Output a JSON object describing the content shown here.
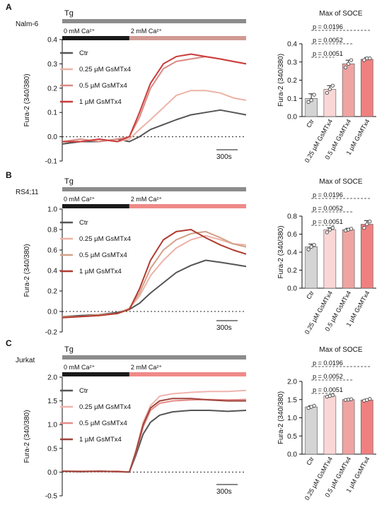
{
  "chart_data": [
    {
      "panel": "A",
      "cell_line": "Nalm-6",
      "type": "line",
      "treatment_label": "Tg",
      "phase1_label": "0 mM Ca²⁺",
      "phase2_label": "2 mM Ca²⁺",
      "ylabel": "Fura-2 (340/380)",
      "ylim": [
        -0.1,
        0.4
      ],
      "yticks": [
        "-0.1",
        "0.0",
        "0.1",
        "0.2",
        "0.3",
        "0.4"
      ],
      "scalebar_label": "300s",
      "t_switch": 0.365,
      "series": [
        {
          "name": "Ctr",
          "color": "#555555",
          "x": [
            0,
            0.1,
            0.2,
            0.3,
            0.365,
            0.42,
            0.48,
            0.55,
            0.62,
            0.7,
            0.78,
            0.86,
            0.93,
            1
          ],
          "values": [
            -0.03,
            -0.02,
            -0.02,
            -0.01,
            -0.02,
            0.0,
            0.03,
            0.05,
            0.07,
            0.09,
            0.1,
            0.11,
            0.1,
            0.09
          ]
        },
        {
          "name": "0.25 µM GsMTx4",
          "color": "#edb2a6",
          "x": [
            0,
            0.1,
            0.2,
            0.3,
            0.365,
            0.42,
            0.48,
            0.55,
            0.62,
            0.7,
            0.78,
            0.86,
            0.93,
            1
          ],
          "values": [
            -0.02,
            -0.02,
            -0.01,
            -0.02,
            -0.01,
            0.03,
            0.07,
            0.12,
            0.17,
            0.19,
            0.19,
            0.18,
            0.16,
            0.15
          ]
        },
        {
          "name": "0.5 µM GsMTx4",
          "color": "#d98a82",
          "x": [
            0,
            0.1,
            0.2,
            0.3,
            0.365,
            0.42,
            0.48,
            0.55,
            0.62,
            0.7,
            0.78,
            0.86,
            0.93,
            1
          ],
          "values": [
            -0.02,
            -0.01,
            -0.02,
            -0.01,
            0.0,
            0.08,
            0.2,
            0.28,
            0.31,
            0.32,
            0.33,
            0.32,
            0.31,
            0.3
          ]
        },
        {
          "name": "1 µM GsMTx4",
          "color": "#cc3b3b",
          "x": [
            0,
            0.1,
            0.2,
            0.3,
            0.365,
            0.42,
            0.48,
            0.55,
            0.62,
            0.7,
            0.78,
            0.86,
            0.93,
            1
          ],
          "values": [
            -0.02,
            -0.02,
            -0.01,
            -0.02,
            0.0,
            0.1,
            0.22,
            0.3,
            0.33,
            0.34,
            0.33,
            0.32,
            0.31,
            0.3
          ]
        }
      ],
      "bar": {
        "title": "Max of SOCE",
        "ylabel": "Fura-2 (340/380)",
        "ylim": [
          0,
          0.4
        ],
        "yticks": [
          "0.0",
          "0.1",
          "0.2",
          "0.3",
          "0.4"
        ],
        "categories": [
          "Ctr",
          "0.25 µM GsMTx4",
          "0.5 µM GsMTx4",
          "1 µM GsMTx4"
        ],
        "values": [
          0.1,
          0.15,
          0.29,
          0.315
        ],
        "errors": [
          0.025,
          0.02,
          0.02,
          0.01
        ],
        "points": [
          [
            0.08,
            0.09,
            0.12
          ],
          [
            0.13,
            0.15,
            0.17
          ],
          [
            0.27,
            0.29,
            0.31
          ],
          [
            0.31,
            0.32,
            0.32
          ]
        ],
        "colors": [
          "#d4d4d4",
          "#f9d7d6",
          "#f0a4a2",
          "#f08080"
        ],
        "pvalues": [
          "p = 0.0196",
          "p = 0.0052",
          "p = 0.0051"
        ]
      }
    },
    {
      "panel": "B",
      "cell_line": "RS4;11",
      "type": "line",
      "treatment_label": "Tg",
      "phase1_label": "0 mM Ca²⁺",
      "phase2_label": "2 mM Ca²⁺",
      "ylabel": "Fura-2 (340/380)",
      "ylim": [
        -0.2,
        1.0
      ],
      "yticks": [
        "-0.2",
        "0.0",
        "0.2",
        "0.4",
        "0.6",
        "0.8",
        "1.0"
      ],
      "scalebar_label": "300s",
      "t_switch": 0.365,
      "series": [
        {
          "name": "Ctr",
          "color": "#555555",
          "x": [
            0,
            0.1,
            0.2,
            0.3,
            0.365,
            0.42,
            0.48,
            0.55,
            0.62,
            0.7,
            0.78,
            0.86,
            0.93,
            1
          ],
          "values": [
            -0.05,
            -0.04,
            -0.03,
            -0.01,
            0.02,
            0.08,
            0.18,
            0.28,
            0.38,
            0.45,
            0.5,
            0.48,
            0.46,
            0.44
          ]
        },
        {
          "name": "0.25 µM GsMTx4",
          "color": "#edb2a6",
          "x": [
            0,
            0.1,
            0.2,
            0.3,
            0.365,
            0.42,
            0.48,
            0.55,
            0.62,
            0.7,
            0.78,
            0.86,
            0.93,
            1
          ],
          "values": [
            -0.06,
            -0.05,
            -0.04,
            -0.02,
            0.03,
            0.15,
            0.35,
            0.5,
            0.62,
            0.7,
            0.74,
            0.7,
            0.66,
            0.65
          ]
        },
        {
          "name": "0.5 µM GsMTx4",
          "color": "#d2a088",
          "x": [
            0,
            0.1,
            0.2,
            0.3,
            0.365,
            0.42,
            0.48,
            0.55,
            0.62,
            0.7,
            0.78,
            0.86,
            0.93,
            1
          ],
          "values": [
            -0.05,
            -0.05,
            -0.03,
            -0.02,
            0.03,
            0.18,
            0.42,
            0.6,
            0.7,
            0.76,
            0.78,
            0.72,
            0.66,
            0.63
          ]
        },
        {
          "name": "1 µM GsMTx4",
          "color": "#b03a2e",
          "x": [
            0,
            0.1,
            0.2,
            0.3,
            0.365,
            0.42,
            0.48,
            0.55,
            0.62,
            0.7,
            0.78,
            0.86,
            0.93,
            1
          ],
          "values": [
            -0.06,
            -0.05,
            -0.04,
            -0.02,
            0.02,
            0.22,
            0.5,
            0.7,
            0.78,
            0.8,
            0.72,
            0.65,
            0.6,
            0.56
          ]
        }
      ],
      "bar": {
        "title": "Max of SOCE",
        "ylabel": "Fura-2 (340/380)",
        "ylim": [
          0,
          0.8
        ],
        "yticks": [
          "0.0",
          "0.2",
          "0.4",
          "0.6",
          "0.8"
        ],
        "categories": [
          "Ctr",
          "0.25 µM GsMTx4",
          "0.5 µM GsMTx4",
          "1 µM GsMTx4"
        ],
        "values": [
          0.46,
          0.65,
          0.65,
          0.71
        ],
        "errors": [
          0.03,
          0.02,
          0.015,
          0.04
        ],
        "points": [
          [
            0.43,
            0.46,
            0.48
          ],
          [
            0.62,
            0.65,
            0.67
          ],
          [
            0.64,
            0.65,
            0.66
          ],
          [
            0.67,
            0.71,
            0.74
          ]
        ],
        "colors": [
          "#d4d4d4",
          "#f9d7d6",
          "#f0a4a2",
          "#f08080"
        ],
        "pvalues": [
          "p = 0.0196",
          "p = 0.0052",
          "p = 0.0051"
        ]
      }
    },
    {
      "panel": "C",
      "cell_line": "Jurkat",
      "type": "line",
      "treatment_label": "Tg",
      "phase1_label": "0 mM Ca²⁺",
      "phase2_label": "2 mM Ca²⁺",
      "ylabel": "Fura-2 (340/380)",
      "ylim": [
        -0.5,
        2.0
      ],
      "yticks": [
        "-0.5",
        "0.0",
        "0.5",
        "1.0",
        "1.5",
        "2.0"
      ],
      "scalebar_label": "300s",
      "t_switch": 0.365,
      "series": [
        {
          "name": "Ctr",
          "color": "#555555",
          "x": [
            0,
            0.1,
            0.2,
            0.3,
            0.365,
            0.4,
            0.44,
            0.48,
            0.53,
            0.6,
            0.7,
            0.8,
            0.9,
            1
          ],
          "values": [
            0.02,
            0.01,
            0.02,
            0.01,
            0.0,
            0.35,
            0.8,
            1.05,
            1.2,
            1.27,
            1.3,
            1.3,
            1.28,
            1.3
          ]
        },
        {
          "name": "0.25 µM GsMTx4",
          "color": "#f0b4ae",
          "x": [
            0,
            0.1,
            0.2,
            0.3,
            0.365,
            0.4,
            0.44,
            0.48,
            0.53,
            0.6,
            0.7,
            0.8,
            0.9,
            1
          ],
          "values": [
            0.02,
            0.02,
            0.02,
            0.01,
            0.0,
            0.45,
            1.05,
            1.4,
            1.6,
            1.65,
            1.68,
            1.7,
            1.7,
            1.72
          ]
        },
        {
          "name": "0.5 µM GsMTx4",
          "color": "#e58c8a",
          "x": [
            0,
            0.1,
            0.2,
            0.3,
            0.365,
            0.4,
            0.44,
            0.48,
            0.53,
            0.6,
            0.7,
            0.8,
            0.9,
            1
          ],
          "values": [
            0.02,
            0.02,
            0.01,
            0.02,
            0.0,
            0.4,
            0.95,
            1.3,
            1.45,
            1.5,
            1.52,
            1.53,
            1.52,
            1.53
          ]
        },
        {
          "name": "1 µM GsMTx4",
          "color": "#a0443c",
          "x": [
            0,
            0.1,
            0.2,
            0.3,
            0.365,
            0.4,
            0.44,
            0.48,
            0.53,
            0.6,
            0.7,
            0.8,
            0.9,
            1
          ],
          "values": [
            0.02,
            0.01,
            0.02,
            0.01,
            0.0,
            0.42,
            1.0,
            1.35,
            1.5,
            1.55,
            1.55,
            1.52,
            1.5,
            1.5
          ]
        }
      ],
      "bar": {
        "title": "Max of SOCE",
        "ylabel": "Fura-2 (340/380)",
        "ylim": [
          0,
          2.0
        ],
        "yticks": [
          "0.0",
          "0.5",
          "1.0",
          "1.5",
          "2.0"
        ],
        "categories": [
          "Ctr",
          "0.25 µM GsMTx4",
          "0.5 µM GsMTx4",
          "1 µM GsMTx4"
        ],
        "values": [
          1.3,
          1.6,
          1.5,
          1.49
        ],
        "errors": [
          0.03,
          0.02,
          0.01,
          0.02
        ],
        "points": [
          [
            1.27,
            1.3,
            1.33
          ],
          [
            1.58,
            1.6,
            1.62
          ],
          [
            1.49,
            1.5,
            1.51
          ],
          [
            1.47,
            1.49,
            1.52
          ]
        ],
        "colors": [
          "#d4d4d4",
          "#f9d7d6",
          "#f0a4a2",
          "#f08080"
        ],
        "pvalues": [
          "p = 0.0196",
          "p = 0.0052",
          "p = 0.0051"
        ]
      }
    }
  ]
}
